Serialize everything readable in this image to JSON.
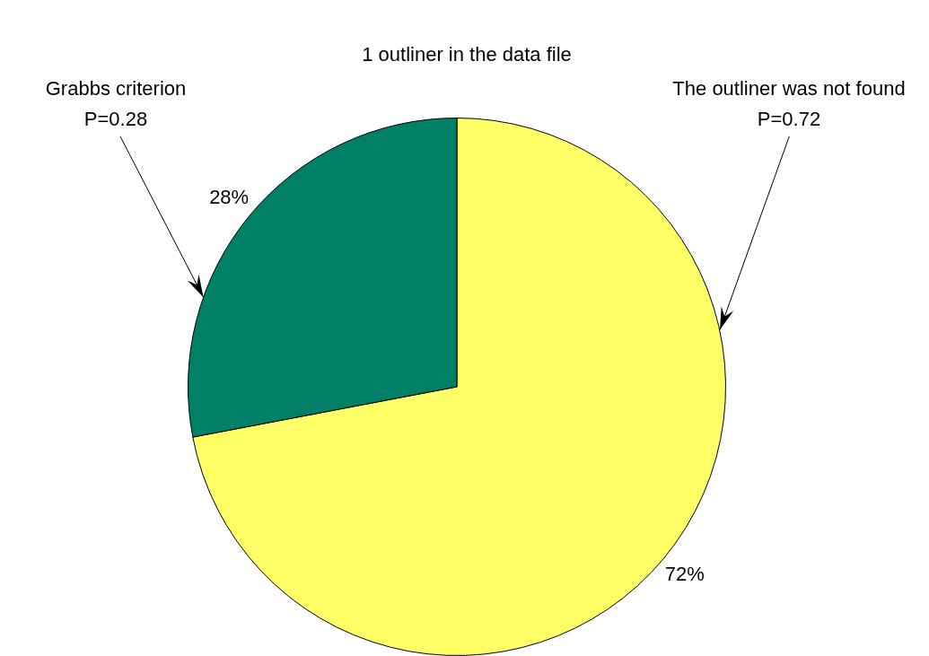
{
  "chart_data": {
    "type": "pie",
    "title": "1 outliner in the data file",
    "categories": [
      "The outliner was not found",
      "Grabbs criterion"
    ],
    "values": [
      72,
      28
    ],
    "colors": [
      "#ffff66",
      "#008066"
    ],
    "value_labels": [
      "72%",
      "28%"
    ],
    "annotations": [
      "P=0.72",
      "P=0.28"
    ],
    "legend": false
  }
}
